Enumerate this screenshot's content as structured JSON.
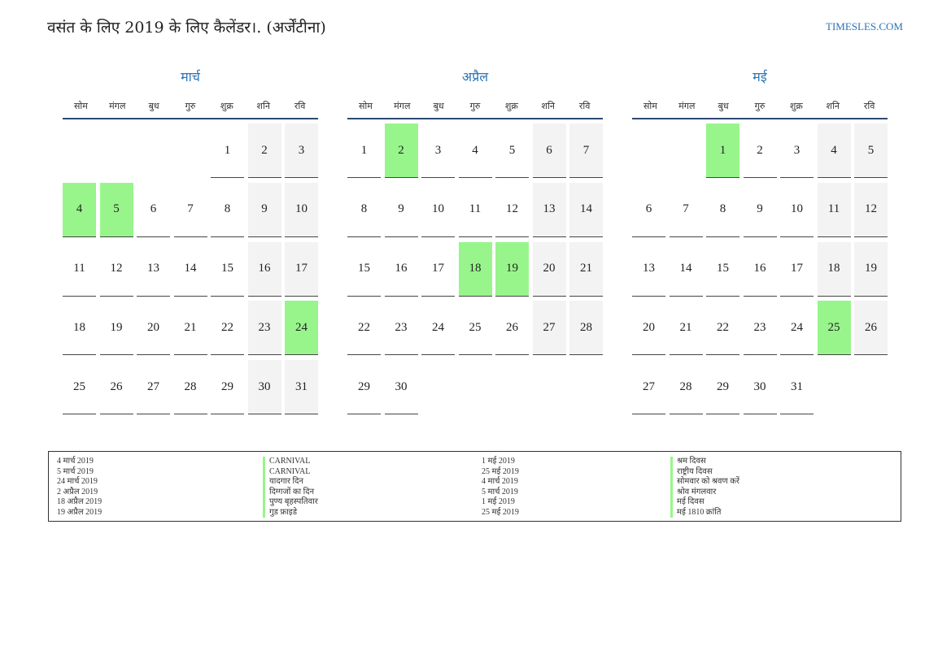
{
  "header": {
    "title": "वसंत के लिए 2019 के लिए कैलेंडर।. (अर्जेंटीना)",
    "site": "TIMESLES.COM"
  },
  "weekdays": [
    "सोम",
    "मंगल",
    "बुध",
    "गुरु",
    "शुक्र",
    "शनि",
    "रवि"
  ],
  "months": [
    {
      "name": "मार्च",
      "start_offset": 4,
      "days": 31,
      "holidays": [
        4,
        5,
        24
      ]
    },
    {
      "name": "अप्रैल",
      "start_offset": 0,
      "days": 30,
      "holidays": [
        2,
        18,
        19
      ]
    },
    {
      "name": "मई",
      "start_offset": 2,
      "days": 31,
      "holidays": [
        1,
        25
      ]
    }
  ],
  "legend": {
    "dates_left": [
      "4 मार्च 2019",
      "5 मार्च 2019",
      "24 मार्च 2019",
      "2 अप्रैल 2019",
      "18 अप्रैल 2019",
      "19 अप्रैल 2019"
    ],
    "names_left": [
      "CARNIVAL",
      "CARNIVAL",
      "यादगार दिन",
      "दिग्गजों का दिन",
      "पुण्य बृहस्पतिवार",
      "गुड फ्राइडे"
    ],
    "dates_right": [
      "1 मई 2019",
      "25 मई 2019",
      "4 मार्च 2019",
      "5 मार्च 2019",
      "1 मई 2019",
      "25 मई 2019"
    ],
    "names_right": [
      "श्रम दिवस",
      "राष्ट्रीय दिवस",
      "सोमवार को श्रवण करें",
      "श्रोव मंगलवार",
      "मई दिवस",
      "मई 1810 क्रांति"
    ]
  },
  "colors": {
    "holiday": "#98f58b",
    "weekend": "#f3f3f3",
    "accent": "#2b73b6"
  }
}
